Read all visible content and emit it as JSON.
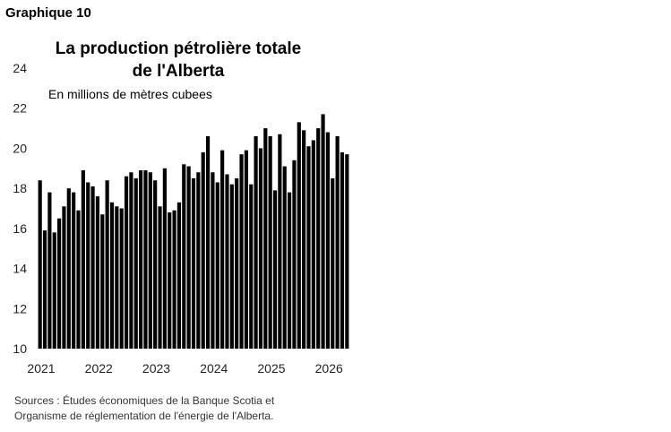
{
  "header": {
    "graph_label": "Graphique 10",
    "title_line1": "La production pétrolière totale",
    "title_line2": "de l'Alberta",
    "subtitle": "En millions de mètres cubees"
  },
  "source": {
    "line1": "Sources : Études économiques de la Banque Scotia et",
    "line2": "Organisme de réglementation de l'énergie de l'Alberta."
  },
  "chart_data": {
    "type": "bar",
    "title": "La production pétrolière totale de l'Alberta",
    "ylabel": "En millions de mètres cubees",
    "ylim": [
      10,
      24
    ],
    "yticks": [
      10,
      12,
      14,
      16,
      18,
      20,
      22,
      24
    ],
    "xtick_labels": [
      "2021",
      "2022",
      "2023",
      "2024",
      "2025",
      "2026"
    ],
    "start": "2021-01",
    "bar_color": "#000000",
    "grid": false,
    "values": [
      18.4,
      15.9,
      17.8,
      15.8,
      16.5,
      17.1,
      18.0,
      17.8,
      16.9,
      18.9,
      18.3,
      18.1,
      17.6,
      16.7,
      18.4,
      17.3,
      17.1,
      17.0,
      18.6,
      18.8,
      18.5,
      18.9,
      18.9,
      18.8,
      18.4,
      17.1,
      19.0,
      16.8,
      16.9,
      17.3,
      19.2,
      19.1,
      18.5,
      18.8,
      19.8,
      20.6,
      18.8,
      18.3,
      19.9,
      18.7,
      18.2,
      18.5,
      19.7,
      19.9,
      18.2,
      20.6,
      20.0,
      21.0,
      20.6,
      17.9,
      20.7,
      19.1,
      17.8,
      19.4,
      21.3,
      20.9,
      20.1,
      20.4,
      21.0,
      21.7,
      20.8,
      18.5,
      20.6,
      19.8,
      19.7
    ]
  }
}
